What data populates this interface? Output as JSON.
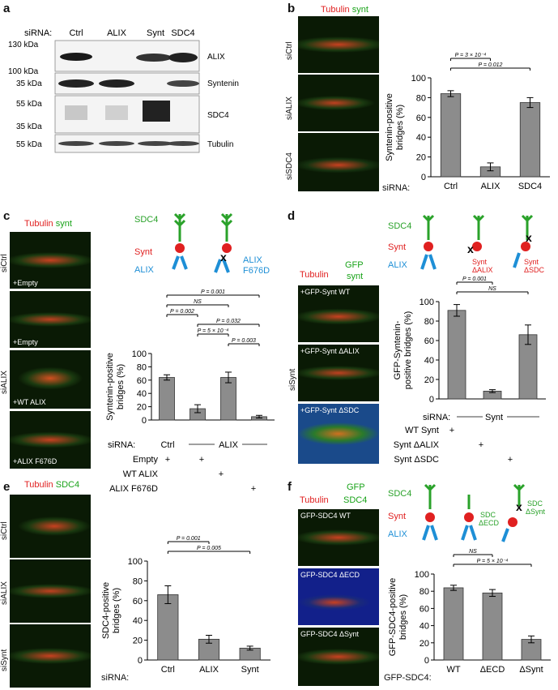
{
  "panels": {
    "a": {
      "letter": "a",
      "sirna_label": "siRNA:",
      "lanes": [
        "Ctrl",
        "ALIX",
        "Synt",
        "SDC4"
      ],
      "blots": [
        {
          "name": "ALIX",
          "markers": [
            "130 kDa",
            "100 kDa"
          ]
        },
        {
          "name": "Syntenin",
          "markers": [
            "35 kDa"
          ]
        },
        {
          "name": "SDC4",
          "markers": [
            "55 kDa",
            "35 kDa"
          ]
        },
        {
          "name": "Tubulin",
          "markers": [
            "55 kDa"
          ]
        }
      ]
    },
    "b": {
      "letter": "b",
      "legend": [
        "Tubulin",
        "synt"
      ],
      "image_labels": [
        "siCtrl",
        "siALIX",
        "siSDC4"
      ],
      "sirna_label": "siRNA:"
    },
    "c": {
      "letter": "c",
      "legend": [
        "Tubulin",
        "synt"
      ],
      "image_labels": [
        "+Empty",
        "+Empty",
        "+WT ALIX",
        "+ALIX F676D"
      ],
      "side_labels": [
        "siCtrl",
        "siALIX"
      ],
      "schematic": {
        "sdc4": "SDC4",
        "synt": "Synt",
        "alix": "ALIX",
        "mutant": "ALIX\nF676D"
      },
      "sirna_label": "siRNA:",
      "sirna_groups": [
        "Ctrl",
        "ALIX"
      ],
      "rows": [
        {
          "label": "Empty",
          "marks": [
            "+",
            "+",
            "",
            ""
          ]
        },
        {
          "label": "WT ALIX",
          "marks": [
            "",
            "",
            "+",
            ""
          ]
        },
        {
          "label": "ALIX F676D",
          "marks": [
            "",
            "",
            "",
            "+"
          ]
        }
      ]
    },
    "d": {
      "letter": "d",
      "legend": [
        "Tubulin",
        "GFP",
        "synt"
      ],
      "image_labels": [
        "+GFP-Synt WT",
        "+GFP-Synt ΔALIX",
        "+GFP-Synt ΔSDC"
      ],
      "side_labels": [
        "siSynt"
      ],
      "schematic": {
        "sdc4": "SDC4",
        "synt": "Synt",
        "alix": "ALIX",
        "m1": "Synt\nΔALIX",
        "m2": "Synt\nΔSDC"
      },
      "sirna_label": "siRNA:",
      "sirna_groups": [
        "Synt"
      ],
      "rows": [
        {
          "label": "WT Synt",
          "marks": [
            "+",
            "",
            ""
          ]
        },
        {
          "label": "Synt ΔALIX",
          "marks": [
            "",
            "+",
            ""
          ]
        },
        {
          "label": "Synt ΔSDC",
          "marks": [
            "",
            "",
            "+"
          ]
        }
      ]
    },
    "e": {
      "letter": "e",
      "legend": [
        "Tubulin",
        "SDC4"
      ],
      "image_labels": [
        "siCtrl",
        "siALIX",
        "siSynt"
      ],
      "sirna_label": "siRNA:"
    },
    "f": {
      "letter": "f",
      "legend": [
        "Tubulin",
        "GFP",
        "SDC4"
      ],
      "image_labels": [
        "GFP-SDC4 WT",
        "GFP-SDC4 ΔECD",
        "GFP-SDC4 ΔSynt"
      ],
      "schematic": {
        "sdc4": "SDC4",
        "synt": "Synt",
        "alix": "ALIX",
        "m1": "SDC\nΔECD",
        "m2": "SDC\nΔSynt"
      },
      "x_prefix": "GFP-SDC4:"
    }
  },
  "chart_data": [
    {
      "id": "b",
      "type": "bar",
      "categories": [
        "Ctrl",
        "ALIX",
        "SDC4"
      ],
      "values": [
        84,
        10,
        75
      ],
      "errors": [
        3,
        4,
        5
      ],
      "ylabel": "Syntenin-positive\nbridges (%)",
      "ylim": [
        0,
        100
      ],
      "yticks": [
        0,
        20,
        40,
        60,
        80,
        100
      ],
      "significance": [
        {
          "from": 0,
          "to": 1,
          "label": "P = 3 × 10⁻⁴"
        },
        {
          "from": 0,
          "to": 2,
          "label": "P = 0.012"
        }
      ]
    },
    {
      "id": "c",
      "type": "bar",
      "categories": [
        "",
        "",
        "",
        ""
      ],
      "values": [
        64,
        17,
        64,
        5
      ],
      "errors": [
        4,
        6,
        8,
        2
      ],
      "ylabel": "Syntenin-positive\nbridges (%)",
      "ylim": [
        0,
        100
      ],
      "yticks": [
        0,
        20,
        40,
        60,
        80,
        100
      ],
      "significance": [
        {
          "from": 0,
          "to": 3,
          "label": "P = 0.001"
        },
        {
          "from": 0,
          "to": 2,
          "label": "NS"
        },
        {
          "from": 0,
          "to": 1,
          "label": "P = 0.002"
        },
        {
          "from": 1,
          "to": 3,
          "label": "P = 0.032"
        },
        {
          "from": 1,
          "to": 2,
          "label": "P = 5 × 10⁻⁴"
        },
        {
          "from": 2,
          "to": 3,
          "label": "P = 0.003"
        }
      ]
    },
    {
      "id": "d",
      "type": "bar",
      "categories": [
        "",
        "",
        ""
      ],
      "values": [
        91,
        8,
        66
      ],
      "errors": [
        6,
        1.5,
        10
      ],
      "ylabel": "GFP-Syntenin-\npositive bridges (%)",
      "ylim": [
        0,
        100
      ],
      "yticks": [
        0,
        20,
        40,
        60,
        80,
        100
      ],
      "significance": [
        {
          "from": 0,
          "to": 1,
          "label": "P = 0.001"
        },
        {
          "from": 0,
          "to": 2,
          "label": "NS"
        }
      ]
    },
    {
      "id": "e",
      "type": "bar",
      "categories": [
        "Ctrl",
        "ALIX",
        "Synt"
      ],
      "values": [
        66,
        21,
        12
      ],
      "errors": [
        9,
        4,
        2
      ],
      "ylabel": "SDC4-positive\nbridges (%)",
      "ylim": [
        0,
        100
      ],
      "yticks": [
        0,
        20,
        40,
        60,
        80,
        100
      ],
      "significance": [
        {
          "from": 0,
          "to": 1,
          "label": "P = 0.001"
        },
        {
          "from": 0,
          "to": 2,
          "label": "P = 0.005"
        }
      ]
    },
    {
      "id": "f",
      "type": "bar",
      "categories": [
        "WT",
        "ΔECD",
        "ΔSynt"
      ],
      "values": [
        84,
        78,
        24
      ],
      "errors": [
        3,
        4,
        4
      ],
      "ylabel": "GFP-SDC4-positive\nbridges (%)",
      "ylim": [
        0,
        100
      ],
      "yticks": [
        0,
        20,
        40,
        60,
        80,
        100
      ],
      "significance": [
        {
          "from": 0,
          "to": 1,
          "label": "NS"
        },
        {
          "from": 0,
          "to": 2,
          "label": "P = 5 × 10⁻⁴"
        }
      ]
    }
  ],
  "colors": {
    "tubulin": "#e02020",
    "green": "#19a319",
    "synt": "#e02020",
    "alix": "#1e8fd6",
    "sdc": "#2aa22a",
    "bar": "#8c8c8c"
  }
}
